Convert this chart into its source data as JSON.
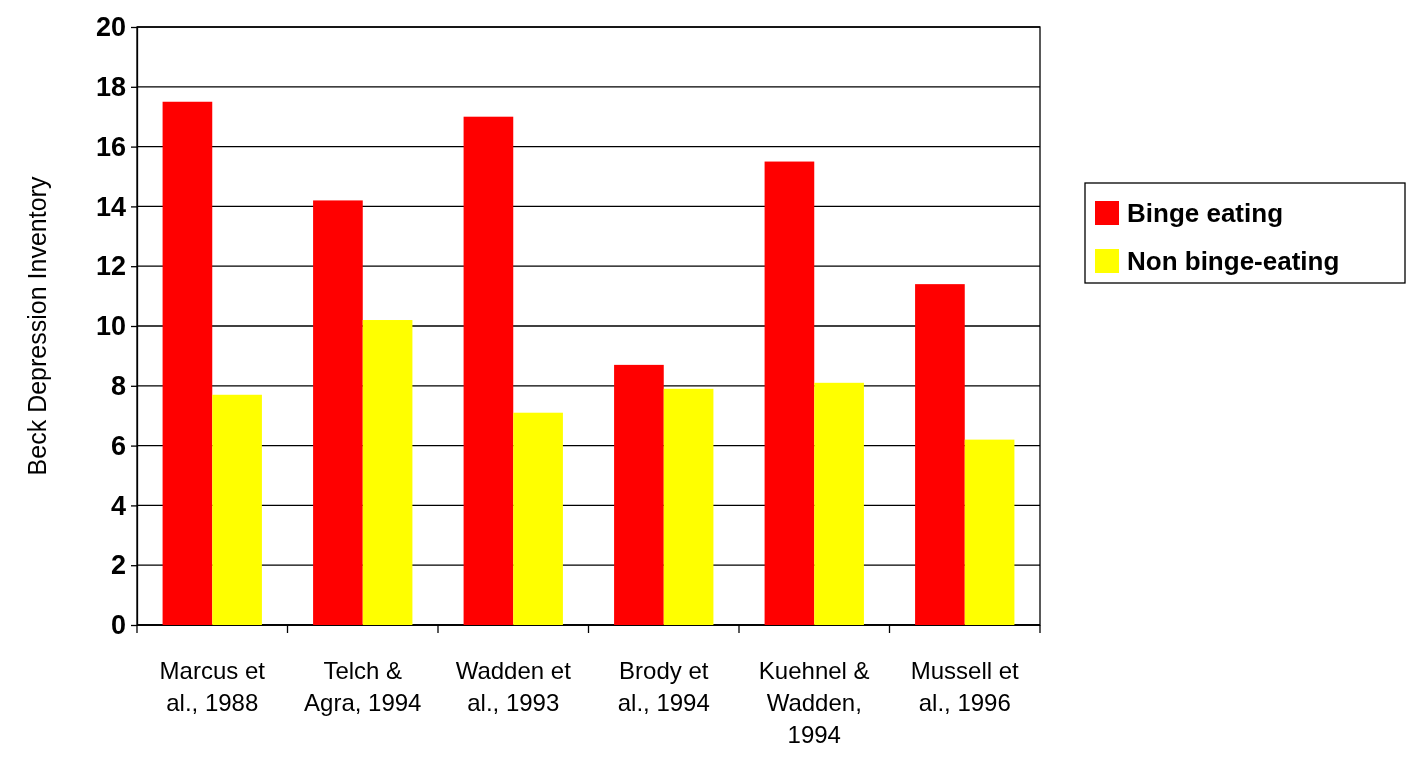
{
  "chart_data": {
    "type": "bar",
    "ylabel": "Beck Depression Inventory",
    "categories": [
      "Marcus et al., 1988",
      "Telch & Agra, 1994",
      "Wadden et al., 1993",
      "Brody et al., 1994",
      "Kuehnel & Wadden, 1994",
      "Mussell et al., 1996"
    ],
    "series": [
      {
        "name": "Binge eating",
        "color": "#ff0000",
        "values": [
          17.5,
          14.2,
          17.0,
          8.7,
          15.5,
          11.4
        ]
      },
      {
        "name": "Non binge-eating",
        "color": "#ffff00",
        "values": [
          7.7,
          10.2,
          7.1,
          7.9,
          8.1,
          6.2
        ]
      }
    ],
    "ylim": [
      0,
      20
    ],
    "yticks": [
      0,
      2,
      4,
      6,
      8,
      10,
      12,
      14,
      16,
      18,
      20
    ],
    "grid": "y",
    "legend": "right"
  }
}
